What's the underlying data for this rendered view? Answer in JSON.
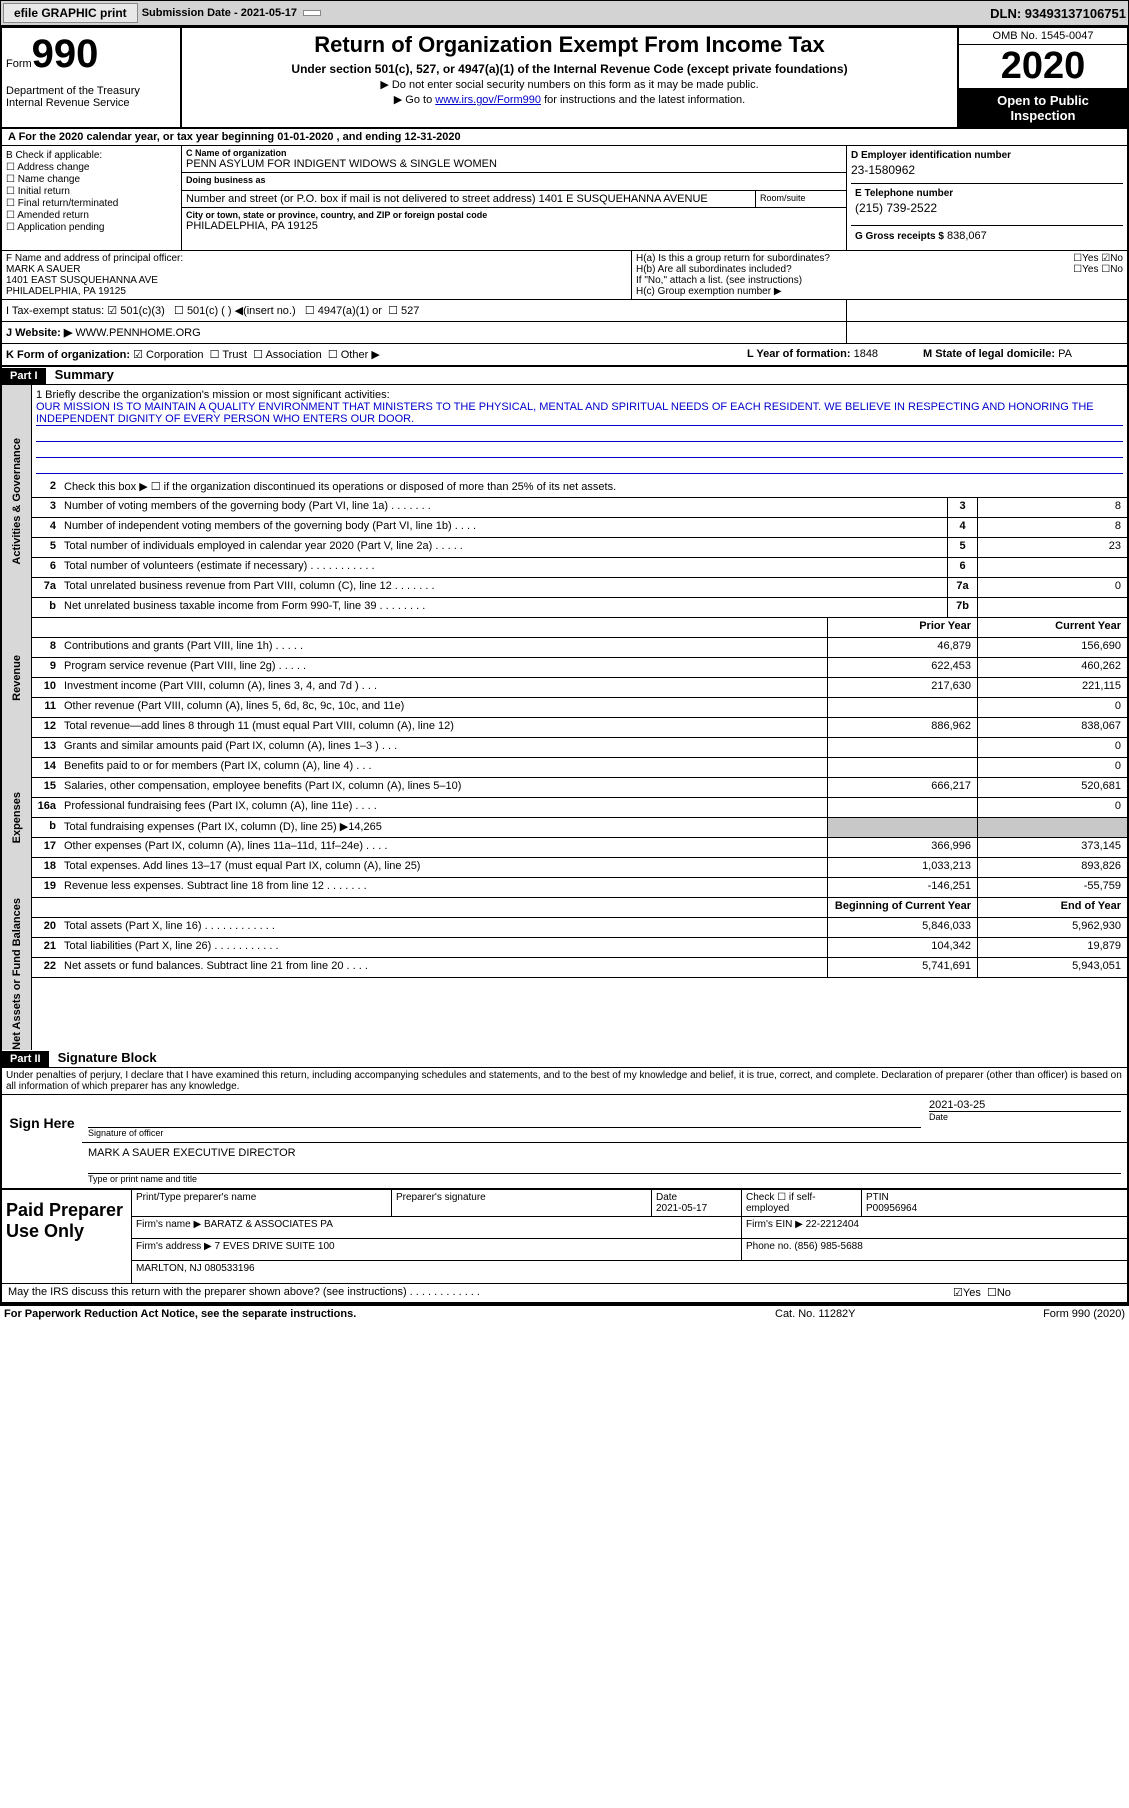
{
  "toolbar": {
    "efile": "efile GRAPHIC print",
    "sub_label": "Submission Date - 2021-05-17",
    "dln": "DLN: 93493137106751"
  },
  "header": {
    "form_word": "Form",
    "form_num": "990",
    "dept": "Department of the Treasury\nInternal Revenue Service",
    "title": "Return of Organization Exempt From Income Tax",
    "subtitle": "Under section 501(c), 527, or 4947(a)(1) of the Internal Revenue Code (except private foundations)",
    "instr1": "▶ Do not enter social security numbers on this form as it may be made public.",
    "instr2_pre": "▶ Go to ",
    "instr2_link": "www.irs.gov/Form990",
    "instr2_post": " for instructions and the latest information.",
    "omb": "OMB No. 1545-0047",
    "year": "2020",
    "open": "Open to Public Inspection"
  },
  "rowA": "A For the 2020 calendar year, or tax year beginning 01-01-2020   , and ending 12-31-2020",
  "colB": {
    "title": "B Check if applicable:",
    "items": [
      "Address change",
      "Name change",
      "Initial return",
      "Final return/terminated",
      "Amended return",
      "Application pending"
    ]
  },
  "colC": {
    "name_lbl": "C Name of organization",
    "name": "PENN ASYLUM FOR INDIGENT WIDOWS & SINGLE WOMEN",
    "dba_lbl": "Doing business as",
    "addr_lbl": "Number and street (or P.O. box if mail is not delivered to street address)",
    "room_lbl": "Room/suite",
    "addr": "1401 E SUSQUEHANNA AVENUE",
    "city_lbl": "City or town, state or province, country, and ZIP or foreign postal code",
    "city": "PHILADELPHIA, PA  19125"
  },
  "colD": {
    "ein_lbl": "D Employer identification number",
    "ein": "23-1580962",
    "tel_lbl": "E Telephone number",
    "tel": "(215) 739-2522",
    "gross_lbl": "G Gross receipts $",
    "gross": "838,067"
  },
  "rowF": {
    "lbl": "F  Name and address of principal officer:",
    "name": "MARK A SAUER",
    "addr1": "1401 EAST SUSQUEHANNA AVE",
    "addr2": "PHILADELPHIA, PA  19125"
  },
  "rowH": {
    "ha": "H(a)  Is this a group return for subordinates?",
    "hb": "H(b)  Are all subordinates included?",
    "hb_note": "If \"No,\" attach a list. (see instructions)",
    "hc": "H(c)  Group exemption number ▶",
    "yes": "Yes",
    "no": "No"
  },
  "rowI": {
    "lbl": "I   Tax-exempt status:",
    "c3": "501(c)(3)",
    "c": "501(c) (   ) ◀(insert no.)",
    "a1": "4947(a)(1) or",
    "s527": "527"
  },
  "rowJ": {
    "lbl": "J   Website: ▶",
    "val": "WWW.PENNHOME.ORG"
  },
  "rowK": {
    "lbl": "K Form of organization:",
    "corp": "Corporation",
    "trust": "Trust",
    "assoc": "Association",
    "other": "Other ▶",
    "l_lbl": "L Year of formation:",
    "l_val": "1848",
    "m_lbl": "M State of legal domicile:",
    "m_val": "PA"
  },
  "part1": {
    "hdr": "Part I",
    "title": "Summary",
    "mission_lbl": "1  Briefly describe the organization's mission or most significant activities:",
    "mission": "OUR MISSION IS TO MAINTAIN A QUALITY ENVIRONMENT THAT MINISTERS TO THE PHYSICAL, MENTAL AND SPIRITUAL NEEDS OF EACH RESIDENT. WE BELIEVE IN RESPECTING AND HONORING THE INDEPENDENT DIGNITY OF EVERY PERSON WHO ENTERS OUR DOOR.",
    "vert_ag": "Activities & Governance",
    "vert_rev": "Revenue",
    "vert_exp": "Expenses",
    "vert_net": "Net Assets or Fund Balances",
    "prior": "Prior Year",
    "current": "Current Year",
    "begin": "Beginning of Current Year",
    "end": "End of Year"
  },
  "lines_ag": [
    {
      "n": "2",
      "d": "Check this box ▶ ☐  if the organization discontinued its operations or disposed of more than 25% of its net assets."
    },
    {
      "n": "3",
      "d": "Number of voting members of the governing body (Part VI, line 1a)   .    .    .    .    .    .    .",
      "box": "3",
      "v": "8"
    },
    {
      "n": "4",
      "d": "Number of independent voting members of the governing body (Part VI, line 1b)  .    .    .    .",
      "box": "4",
      "v": "8"
    },
    {
      "n": "5",
      "d": "Total number of individuals employed in calendar year 2020 (Part V, line 2a)  .   .    .    .    .",
      "box": "5",
      "v": "23"
    },
    {
      "n": "6",
      "d": "Total number of volunteers (estimate if necessary)    .    .    .   .    .    .    .    .    .    .    .",
      "box": "6",
      "v": ""
    },
    {
      "n": "7a",
      "d": "Total unrelated business revenue from Part VIII, column (C), line 12   .   .    .    .    .    .    .",
      "box": "7a",
      "v": "0"
    },
    {
      "n": "b",
      "d": "Net unrelated business taxable income from Form 990-T, line 39   .    .    .    .    .    .    .    .",
      "box": "7b",
      "v": ""
    }
  ],
  "lines_rev": [
    {
      "n": "8",
      "d": "Contributions and grants (Part VIII, line 1h)    .   .    .    .    .",
      "p": "46,879",
      "c": "156,690"
    },
    {
      "n": "9",
      "d": "Program service revenue (Part VIII, line 2g)    .   .    .    .    .",
      "p": "622,453",
      "c": "460,262"
    },
    {
      "n": "10",
      "d": "Investment income (Part VIII, column (A), lines 3, 4, and 7d )    .    .    .",
      "p": "217,630",
      "c": "221,115"
    },
    {
      "n": "11",
      "d": "Other revenue (Part VIII, column (A), lines 5, 6d, 8c, 9c, 10c, and 11e)",
      "p": "",
      "c": "0"
    },
    {
      "n": "12",
      "d": "Total revenue—add lines 8 through 11 (must equal Part VIII, column (A), line 12)",
      "p": "886,962",
      "c": "838,067"
    }
  ],
  "lines_exp": [
    {
      "n": "13",
      "d": "Grants and similar amounts paid (Part IX, column (A), lines 1–3 )  .    .    .",
      "p": "",
      "c": "0"
    },
    {
      "n": "14",
      "d": "Benefits paid to or for members (Part IX, column (A), line 4)   .    .    .",
      "p": "",
      "c": "0"
    },
    {
      "n": "15",
      "d": "Salaries, other compensation, employee benefits (Part IX, column (A), lines 5–10)",
      "p": "666,217",
      "c": "520,681"
    },
    {
      "n": "16a",
      "d": "Professional fundraising fees (Part IX, column (A), line 11e)   .    .    .    .",
      "p": "",
      "c": "0"
    },
    {
      "n": "b",
      "d": "Total fundraising expenses (Part IX, column (D), line 25) ▶14,265",
      "shaded": true
    },
    {
      "n": "17",
      "d": "Other expenses (Part IX, column (A), lines 11a–11d, 11f–24e)   .    .    .    .",
      "p": "366,996",
      "c": "373,145"
    },
    {
      "n": "18",
      "d": "Total expenses. Add lines 13–17 (must equal Part IX, column (A), line 25)",
      "p": "1,033,213",
      "c": "893,826"
    },
    {
      "n": "19",
      "d": "Revenue less expenses. Subtract line 18 from line 12  .   .    .    .    .    .    .",
      "p": "-146,251",
      "c": "-55,759"
    }
  ],
  "lines_net": [
    {
      "n": "20",
      "d": "Total assets (Part X, line 16)  .   .    .    .    .    .    .    .    .    .    .    .",
      "p": "5,846,033",
      "c": "5,962,930"
    },
    {
      "n": "21",
      "d": "Total liabilities (Part X, line 26)  .   .    .    .    .    .    .    .    .    .    .",
      "p": "104,342",
      "c": "19,879"
    },
    {
      "n": "22",
      "d": "Net assets or fund balances. Subtract line 21 from line 20   .    .    .    .",
      "p": "5,741,691",
      "c": "5,943,051"
    }
  ],
  "part2": {
    "hdr": "Part II",
    "title": "Signature Block",
    "penalties": "Under penalties of perjury, I declare that I have examined this return, including accompanying schedules and statements, and to the best of my knowledge and belief, it is true, correct, and complete. Declaration of preparer (other than officer) is based on all information of which preparer has any knowledge.",
    "sign_here": "Sign Here",
    "sig_officer_lbl": "Signature of officer",
    "sig_date": "2021-03-25",
    "date_lbl": "Date",
    "sig_name": "MARK A SAUER  EXECUTIVE DIRECTOR",
    "sig_name_lbl": "Type or print name and title",
    "paid_prep": "Paid Preparer Use Only",
    "prep_name_lbl": "Print/Type preparer's name",
    "prep_sig_lbl": "Preparer's signature",
    "prep_date_lbl": "Date",
    "prep_date": "2021-05-17",
    "check_lbl": "Check ☐ if self-employed",
    "ptin_lbl": "PTIN",
    "ptin": "P00956964",
    "firm_name_lbl": "Firm's name    ▶",
    "firm_name": "BARATZ & ASSOCIATES PA",
    "firm_ein_lbl": "Firm's EIN ▶",
    "firm_ein": "22-2212404",
    "firm_addr_lbl": "Firm's address ▶",
    "firm_addr1": "7 EVES DRIVE SUITE 100",
    "firm_addr2": "MARLTON, NJ  080533196",
    "phone_lbl": "Phone no.",
    "phone": "(856) 985-5688",
    "discuss": "May the IRS discuss this return with the preparer shown above? (see instructions)   .    .    .    .    .    .    .    .    .    .    .    .",
    "discuss_yes": "Yes",
    "discuss_no": "No"
  },
  "footer": {
    "pra": "For Paperwork Reduction Act Notice, see the separate instructions.",
    "cat": "Cat. No. 11282Y",
    "form": "Form 990 (2020)"
  }
}
